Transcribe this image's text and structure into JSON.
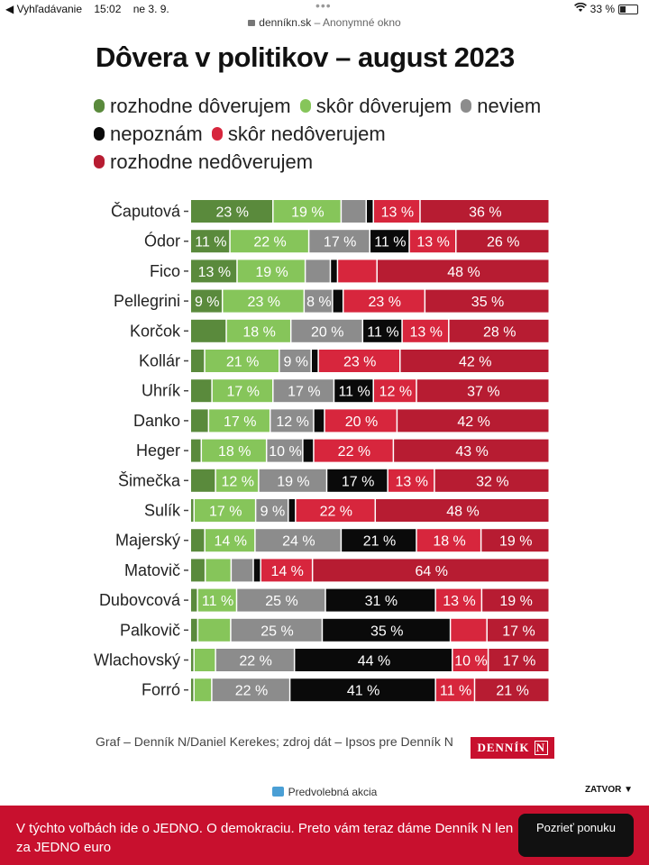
{
  "status": {
    "back": "◀ Vyhľadávanie",
    "time": "15:02",
    "date": "ne 3. 9.",
    "battery": "33 %"
  },
  "browser": {
    "url": "denníkn.sk",
    "mode": "Anonymné okno"
  },
  "colors": {
    "strong_trust": "#5a8a3c",
    "rather_trust": "#86c55a",
    "dont_know": "#8c8c8c",
    "dont_know_person": "#0a0a0a",
    "rather_distrust": "#d7263d",
    "strong_distrust": "#b71c32"
  },
  "chart_data": {
    "type": "bar",
    "orientation": "horizontal-stacked-100",
    "title": "Dôvera v politikov – august 2023",
    "legend": [
      {
        "name": "rozhodne dôverujem",
        "color": "#5a8a3c"
      },
      {
        "name": "skôr dôverujem",
        "color": "#86c55a"
      },
      {
        "name": "neviem",
        "color": "#8c8c8c"
      },
      {
        "name": "nepoznám",
        "color": "#0a0a0a"
      },
      {
        "name": "skôr nedôverujem",
        "color": "#d7263d"
      },
      {
        "name": "rozhodne nedôverujem",
        "color": "#b71c32"
      }
    ],
    "categories": [
      "Čaputová",
      "Ódor",
      "Fico",
      "Pellegrini",
      "Korčok",
      "Kollár",
      "Uhrík",
      "Danko",
      "Heger",
      "Šimečka",
      "Sulík",
      "Majerský",
      "Matovič",
      "Dubovcová",
      "Palkovič",
      "Wlachovský",
      "Forró"
    ],
    "series": [
      {
        "name": "rozhodne dôverujem",
        "values": [
          23,
          11,
          13,
          9,
          10,
          4,
          6,
          5,
          3,
          7,
          1,
          4,
          4,
          2,
          2,
          1,
          1
        ]
      },
      {
        "name": "skôr dôverujem",
        "values": [
          19,
          22,
          19,
          23,
          18,
          21,
          17,
          17,
          18,
          12,
          17,
          14,
          7,
          11,
          9,
          6,
          5
        ]
      },
      {
        "name": "neviem",
        "values": [
          7,
          17,
          7,
          8,
          20,
          9,
          17,
          12,
          10,
          19,
          9,
          24,
          6,
          25,
          25,
          22,
          22
        ]
      },
      {
        "name": "nepoznám",
        "values": [
          2,
          11,
          2,
          3,
          11,
          2,
          11,
          3,
          3,
          17,
          2,
          21,
          2,
          31,
          35,
          44,
          41
        ]
      },
      {
        "name": "skôr nedôverujem",
        "values": [
          13,
          13,
          11,
          23,
          13,
          23,
          12,
          20,
          22,
          13,
          22,
          18,
          14,
          13,
          10,
          10,
          11
        ]
      },
      {
        "name": "rozhodne nedôverujem",
        "values": [
          36,
          26,
          48,
          35,
          28,
          42,
          37,
          42,
          43,
          32,
          48,
          19,
          64,
          19,
          17,
          17,
          21
        ]
      }
    ],
    "labeled": [
      [
        true,
        true,
        false,
        false,
        true,
        true
      ],
      [
        true,
        true,
        true,
        true,
        true,
        true
      ],
      [
        true,
        true,
        false,
        false,
        false,
        true
      ],
      [
        true,
        true,
        true,
        false,
        true,
        true
      ],
      [
        false,
        true,
        true,
        true,
        true,
        true
      ],
      [
        false,
        true,
        true,
        false,
        true,
        true
      ],
      [
        false,
        true,
        true,
        true,
        true,
        true
      ],
      [
        false,
        true,
        true,
        false,
        true,
        true
      ],
      [
        false,
        true,
        true,
        false,
        true,
        true
      ],
      [
        false,
        true,
        true,
        true,
        true,
        true
      ],
      [
        false,
        true,
        true,
        false,
        true,
        true
      ],
      [
        false,
        true,
        true,
        true,
        true,
        true
      ],
      [
        false,
        false,
        false,
        false,
        true,
        true
      ],
      [
        false,
        true,
        true,
        true,
        true,
        true
      ],
      [
        false,
        false,
        true,
        true,
        false,
        true
      ],
      [
        false,
        false,
        true,
        true,
        true,
        true
      ],
      [
        false,
        false,
        true,
        true,
        true,
        true
      ]
    ],
    "value_suffix": " %"
  },
  "credit": "Graf – Denník N/Daniel Kerekes; zdroj dát – Ipsos pre Denník N",
  "logo": {
    "word": "DENNÍK",
    "letter": "N"
  },
  "promo": {
    "label": "Predvolebná akcia",
    "close": "ZATVOR ▼"
  },
  "banner": {
    "text": "V týchto voľbách ide o JEDNO. O demokraciu. Preto vám teraz dáme Denník N len za JEDNO euro",
    "button": "Pozrieť ponuku"
  }
}
